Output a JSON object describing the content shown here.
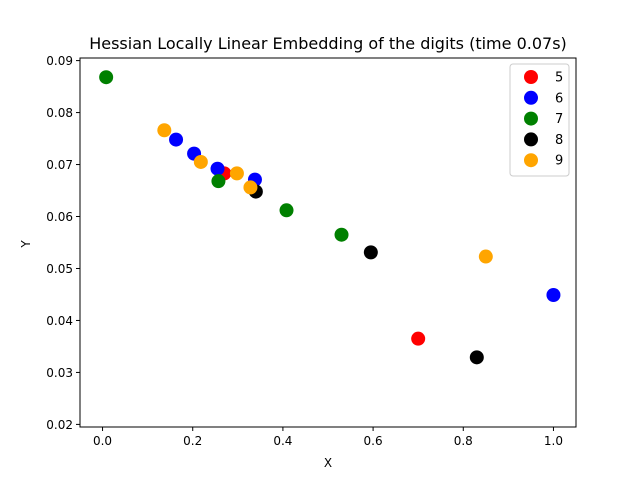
{
  "chart_data": {
    "type": "scatter",
    "title": "Hessian Locally Linear Embedding of the digits (time 0.07s)",
    "xlabel": "X",
    "ylabel": "Y",
    "xlim": [
      -0.05,
      1.05
    ],
    "ylim": [
      0.0195,
      0.0905
    ],
    "xticks": [
      0.0,
      0.2,
      0.4,
      0.6,
      0.8,
      1.0
    ],
    "xtick_labels": [
      "0.0",
      "0.2",
      "0.4",
      "0.6",
      "0.8",
      "1.0"
    ],
    "yticks": [
      0.02,
      0.03,
      0.04,
      0.05,
      0.06,
      0.07,
      0.08,
      0.09
    ],
    "ytick_labels": [
      "0.02",
      "0.03",
      "0.04",
      "0.05",
      "0.06",
      "0.07",
      "0.08",
      "0.09"
    ],
    "grid": false,
    "legend_position": "top-right",
    "series": [
      {
        "name": "5",
        "color": "#ff0000",
        "points": [
          [
            0.27,
            0.0683
          ],
          [
            0.7,
            0.0365
          ]
        ]
      },
      {
        "name": "6",
        "color": "#0000ff",
        "points": [
          [
            0.163,
            0.0748
          ],
          [
            0.203,
            0.0721
          ],
          [
            0.255,
            0.0692
          ],
          [
            0.338,
            0.0671
          ],
          [
            1.0,
            0.0449
          ]
        ]
      },
      {
        "name": "7",
        "color": "#008000",
        "points": [
          [
            0.008,
            0.0868
          ],
          [
            0.257,
            0.0668
          ],
          [
            0.408,
            0.0612
          ],
          [
            0.53,
            0.0565
          ]
        ]
      },
      {
        "name": "8",
        "color": "#000000",
        "points": [
          [
            0.34,
            0.0648
          ],
          [
            0.595,
            0.0531
          ],
          [
            0.83,
            0.0329
          ]
        ]
      },
      {
        "name": "9",
        "color": "#ffa500",
        "points": [
          [
            0.137,
            0.0766
          ],
          [
            0.218,
            0.0705
          ],
          [
            0.298,
            0.0683
          ],
          [
            0.328,
            0.0656
          ],
          [
            0.85,
            0.0523
          ]
        ]
      }
    ]
  }
}
